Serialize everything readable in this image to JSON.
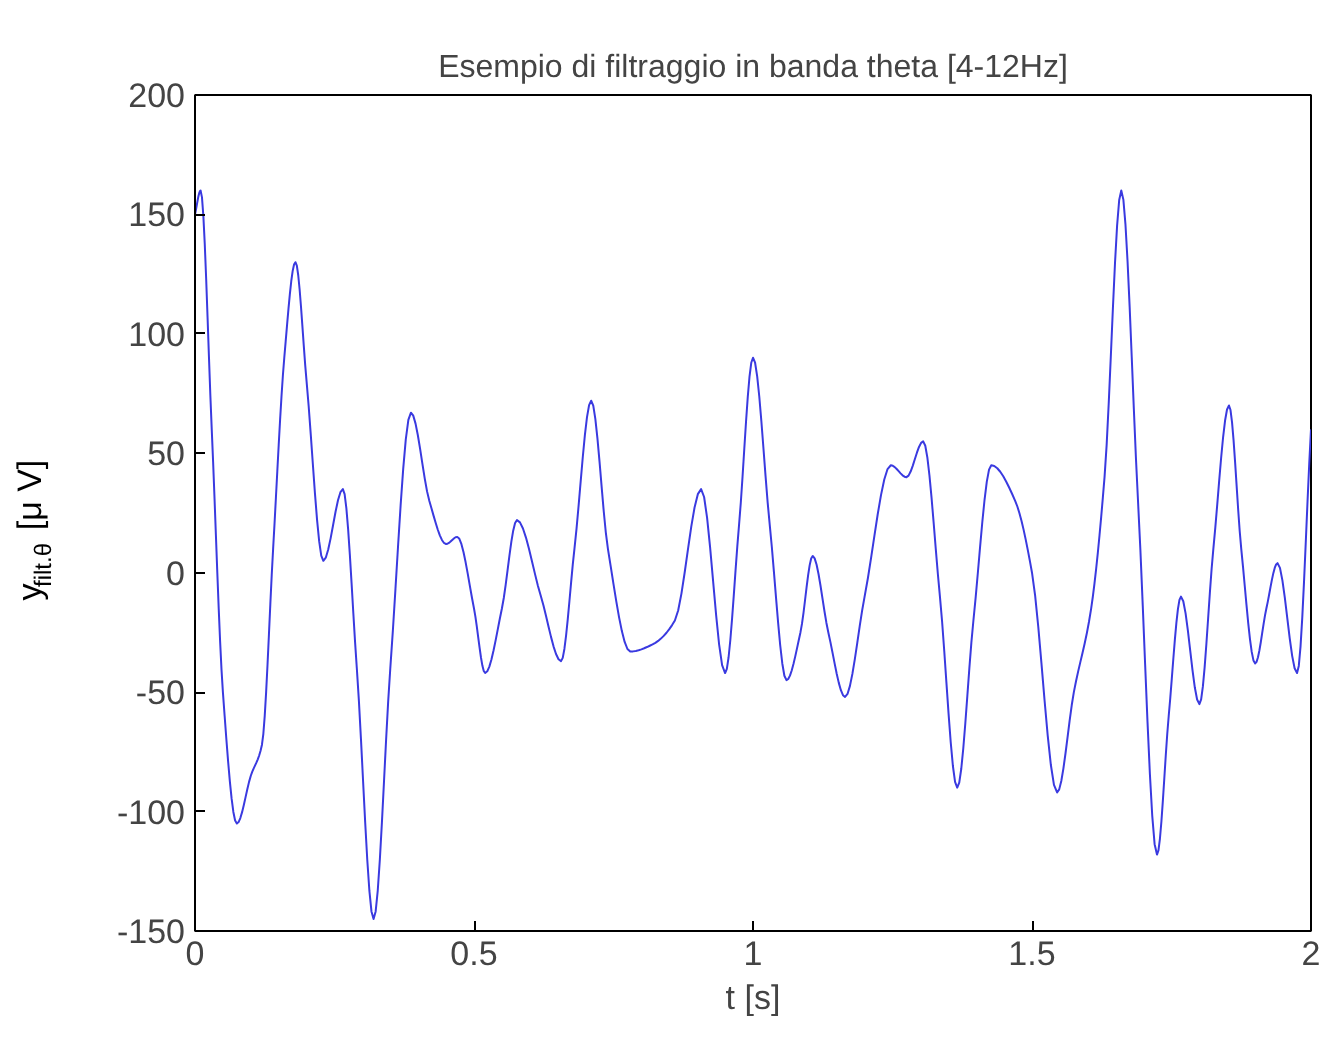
{
  "chart_data": {
    "type": "line",
    "title": "Esempio di filtraggio in banda theta [4-12Hz]",
    "xlabel": "t [s]",
    "ylabel": "y$_{filt.θ}$ [μ V]",
    "series": [
      {
        "color": "#3a3ae0",
        "x": [
          0,
          0.01,
          0.03,
          0.05,
          0.075,
          0.1,
          0.12,
          0.14,
          0.16,
          0.18,
          0.2,
          0.23,
          0.265,
          0.29,
          0.32,
          0.35,
          0.387,
          0.42,
          0.45,
          0.47,
          0.5,
          0.52,
          0.55,
          0.577,
          0.62,
          0.656,
          0.68,
          0.71,
          0.74,
          0.78,
          0.82,
          0.86,
          0.907,
          0.95,
          0.975,
          1.0,
          1.03,
          1.06,
          1.085,
          1.107,
          1.135,
          1.165,
          1.2,
          1.247,
          1.275,
          1.305,
          1.335,
          1.366,
          1.395,
          1.427,
          1.47,
          1.5,
          1.545,
          1.575,
          1.606,
          1.63,
          1.66,
          1.69,
          1.724,
          1.745,
          1.767,
          1.8,
          1.825,
          1.853,
          1.875,
          1.9,
          1.92,
          1.94,
          1.975,
          2.0
        ],
        "values": [
          150,
          160,
          60,
          -50,
          -105,
          -85,
          -72,
          10,
          90,
          130,
          80,
          5,
          35,
          -40,
          -145,
          -40,
          67,
          30,
          12,
          15,
          -15,
          -42,
          -15,
          22,
          -10,
          -37,
          10,
          72,
          10,
          -33,
          -30,
          -20,
          35,
          -42,
          20,
          90,
          20,
          -45,
          -25,
          7,
          -25,
          -52,
          -10,
          45,
          40,
          55,
          -10,
          -90,
          -20,
          45,
          30,
          0,
          -92,
          -50,
          -15,
          40,
          160,
          30,
          -118,
          -60,
          -10,
          -55,
          10,
          70,
          10,
          -38,
          -15,
          4,
          -42,
          60
        ]
      }
    ],
    "xlim": [
      0,
      2
    ],
    "ylim": [
      -150,
      200
    ],
    "xticks": [
      0,
      0.5,
      1,
      1.5,
      2
    ],
    "yticks": [
      -150,
      -100,
      -50,
      0,
      50,
      100,
      150,
      200
    ],
    "grid": false
  }
}
